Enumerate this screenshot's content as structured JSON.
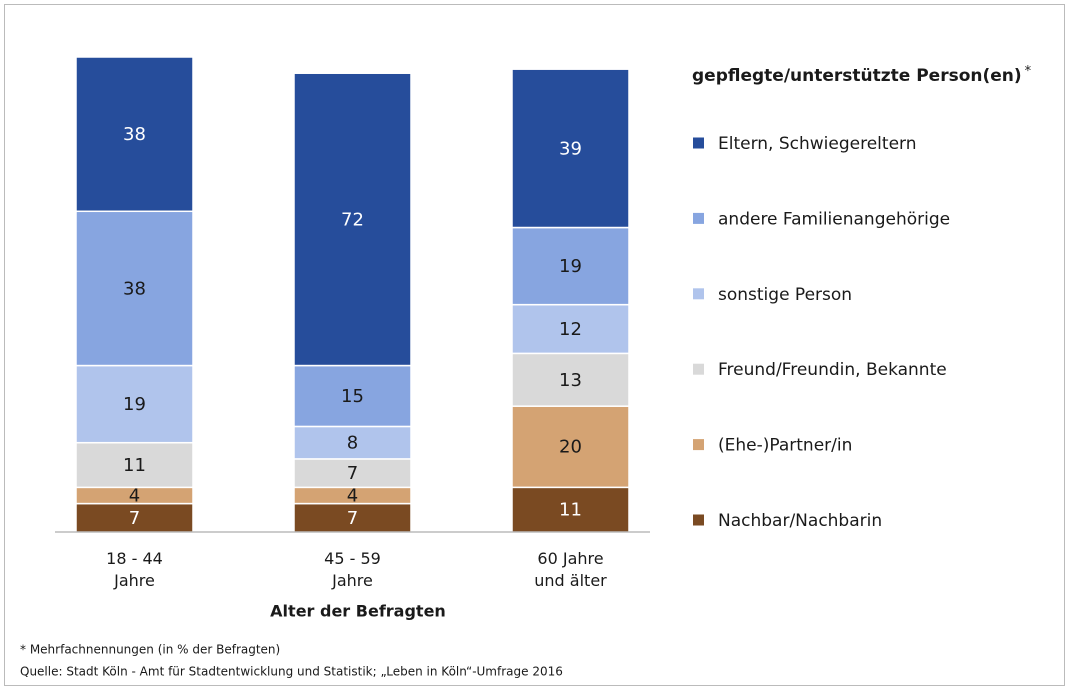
{
  "chart_data": {
    "type": "stacked_bar",
    "x_label": "Alter der Befragten",
    "categories": [
      "18 - 44\nJahre",
      "45 - 59\nJahre",
      "60 Jahre\nund älter"
    ],
    "legend_title": "gepflegte/unterstützte Person(en)",
    "legend_title_mark": "*",
    "legend_position": "right",
    "series": [
      {
        "name": "Eltern, Schwiegereltern",
        "color": "#264d9b",
        "values": [
          38,
          72,
          39
        ]
      },
      {
        "name": "andere Familienangehörige",
        "color": "#87a5e0",
        "values": [
          38,
          15,
          19
        ]
      },
      {
        "name": "sonstige Person",
        "color": "#b0c4ec",
        "values": [
          19,
          8,
          12
        ]
      },
      {
        "name": "Freund/Freundin, Bekannte",
        "color": "#d9d9d9",
        "values": [
          11,
          7,
          13
        ]
      },
      {
        "name": "(Ehe-)Partner/in",
        "color": "#d4a373",
        "values": [
          4,
          4,
          20
        ]
      },
      {
        "name": "Nachbar/Nachbarin",
        "color": "#7a4a22",
        "values": [
          7,
          7,
          11
        ]
      }
    ],
    "notes": [
      "* Mehrfachnennungen (in % der Befragten)",
      "Quelle: Stadt Köln - Amt für Stadtentwicklung und Statistik; „Leben in Köln“-Umfrage 2016"
    ]
  }
}
